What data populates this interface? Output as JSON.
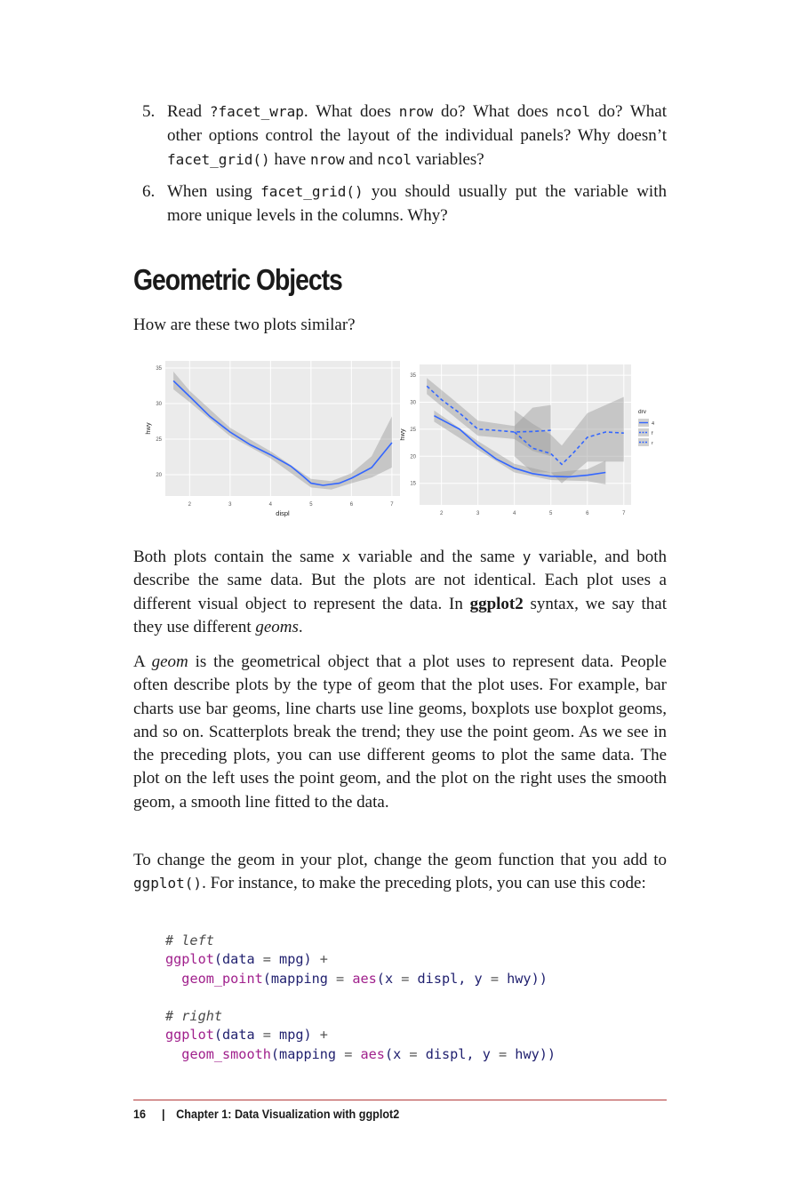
{
  "exercises": [
    {
      "num": "5.",
      "parts": [
        {
          "t": "Read ",
          "c": false
        },
        {
          "t": "?facet_wrap",
          "c": true
        },
        {
          "t": ". What does ",
          "c": false
        },
        {
          "t": "nrow",
          "c": true
        },
        {
          "t": " do? What does ",
          "c": false
        },
        {
          "t": "ncol",
          "c": true
        },
        {
          "t": " do? What other options control the layout of the individual panels? Why doesn’t ",
          "c": false
        },
        {
          "t": "facet_grid()",
          "c": true
        },
        {
          "t": " have ",
          "c": false
        },
        {
          "t": "nrow",
          "c": true
        },
        {
          "t": " and ",
          "c": false
        },
        {
          "t": "ncol",
          "c": true
        },
        {
          "t": " variables?",
          "c": false
        }
      ]
    },
    {
      "num": "6.",
      "parts": [
        {
          "t": "When using ",
          "c": false
        },
        {
          "t": "facet_grid()",
          "c": true
        },
        {
          "t": " you should usually put the variable with more unique levels in the columns. Why?",
          "c": false
        }
      ]
    }
  ],
  "section_title": "Geometric Objects",
  "intro": "How are these two plots similar?",
  "chart_data": [
    {
      "type": "line",
      "xlabel": "displ",
      "ylabel": "hwy",
      "xticks": [
        "2",
        "3",
        "4",
        "5",
        "6",
        "7"
      ],
      "yticks": [
        "20",
        "25",
        "30",
        "35"
      ],
      "xlim": [
        1.4,
        7.2
      ],
      "ylim": [
        17,
        36
      ],
      "series": [
        {
          "values": [
            [
              1.6,
              33.2
            ],
            [
              2.0,
              31.0
            ],
            [
              2.5,
              28.2
            ],
            [
              3.0,
              26.0
            ],
            [
              3.5,
              24.2
            ],
            [
              4.0,
              22.8
            ],
            [
              4.5,
              21.2
            ],
            [
              4.8,
              19.8
            ],
            [
              5.0,
              18.8
            ],
            [
              5.3,
              18.5
            ],
            [
              5.7,
              18.8
            ],
            [
              6.0,
              19.5
            ],
            [
              6.5,
              21.0
            ],
            [
              7.0,
              24.5
            ]
          ]
        }
      ],
      "band": {
        "upper": [
          [
            1.6,
            34.5
          ],
          [
            2.0,
            31.8
          ],
          [
            3.0,
            26.6
          ],
          [
            4.0,
            23.3
          ],
          [
            5.0,
            19.4
          ],
          [
            5.5,
            19.1
          ],
          [
            6.0,
            20.2
          ],
          [
            6.5,
            22.6
          ],
          [
            7.0,
            28.2
          ]
        ],
        "lower": [
          [
            7.0,
            21.0
          ],
          [
            6.5,
            19.6
          ],
          [
            6.0,
            18.8
          ],
          [
            5.5,
            17.9
          ],
          [
            5.0,
            18.2
          ],
          [
            4.0,
            22.3
          ],
          [
            3.0,
            25.4
          ],
          [
            2.0,
            30.2
          ],
          [
            1.6,
            32.0
          ]
        ]
      }
    },
    {
      "type": "line",
      "xlabel": "",
      "ylabel": "hwy",
      "xticks": [
        "2",
        "3",
        "4",
        "5",
        "6",
        "7"
      ],
      "yticks": [
        "15",
        "20",
        "25",
        "30",
        "35"
      ],
      "xlim": [
        1.4,
        7.2
      ],
      "ylim": [
        11,
        37
      ],
      "legend": {
        "title": "drv",
        "position": "right",
        "entries": [
          "4",
          "f",
          "r"
        ]
      },
      "series": [
        {
          "name": "4",
          "dash": false,
          "values": [
            [
              1.8,
              27.5
            ],
            [
              2.5,
              25.0
            ],
            [
              3.0,
              22.0
            ],
            [
              3.5,
              19.5
            ],
            [
              4.0,
              17.8
            ],
            [
              4.5,
              16.8
            ],
            [
              5.0,
              16.3
            ],
            [
              5.5,
              16.2
            ],
            [
              6.0,
              16.5
            ],
            [
              6.5,
              17.0
            ]
          ]
        },
        {
          "name": "f",
          "dash": true,
          "values": [
            [
              1.6,
              33.0
            ],
            [
              2.0,
              30.5
            ],
            [
              2.5,
              28.0
            ],
            [
              3.0,
              25.0
            ],
            [
              3.5,
              24.8
            ],
            [
              4.0,
              24.5
            ],
            [
              4.5,
              24.6
            ],
            [
              5.0,
              24.8
            ]
          ]
        },
        {
          "name": "r",
          "dash": true,
          "values": [
            [
              4.0,
              24.5
            ],
            [
              4.5,
              21.5
            ],
            [
              5.0,
              20.5
            ],
            [
              5.3,
              18.5
            ],
            [
              5.6,
              20.5
            ],
            [
              6.0,
              23.5
            ],
            [
              6.5,
              24.5
            ],
            [
              7.0,
              24.3
            ]
          ]
        }
      ],
      "bands": [
        {
          "upper": [
            [
              1.8,
              28.5
            ],
            [
              3.0,
              22.8
            ],
            [
              4.0,
              18.6
            ],
            [
              5.0,
              17.0
            ],
            [
              6.0,
              17.6
            ],
            [
              6.5,
              19.2
            ]
          ],
          "lower": [
            [
              6.5,
              14.8
            ],
            [
              6.0,
              15.4
            ],
            [
              5.0,
              15.6
            ],
            [
              4.0,
              17.0
            ],
            [
              3.0,
              21.2
            ],
            [
              1.8,
              26.4
            ]
          ]
        },
        {
          "upper": [
            [
              1.6,
              34.5
            ],
            [
              2.5,
              29.5
            ],
            [
              3.0,
              26.6
            ],
            [
              4.0,
              25.6
            ],
            [
              4.5,
              29.0
            ],
            [
              5.0,
              29.5
            ]
          ],
          "lower": [
            [
              5.0,
              20.0
            ],
            [
              4.5,
              21.0
            ],
            [
              4.0,
              23.2
            ],
            [
              3.0,
              23.8
            ],
            [
              2.5,
              26.5
            ],
            [
              1.6,
              31.5
            ]
          ]
        },
        {
          "upper": [
            [
              4.0,
              28.5
            ],
            [
              4.5,
              26.0
            ],
            [
              5.0,
              24.0
            ],
            [
              5.3,
              22.0
            ],
            [
              6.0,
              28.0
            ],
            [
              7.0,
              31.0
            ]
          ],
          "lower": [
            [
              7.0,
              19.0
            ],
            [
              6.0,
              19.0
            ],
            [
              5.3,
              15.0
            ],
            [
              5.0,
              17.0
            ],
            [
              4.5,
              17.0
            ],
            [
              4.0,
              20.0
            ]
          ]
        }
      ]
    }
  ],
  "p1": [
    {
      "t": "Both plots contain the same ",
      "s": ""
    },
    {
      "t": "x",
      "s": "code"
    },
    {
      "t": " variable and the same ",
      "s": ""
    },
    {
      "t": "y",
      "s": "code"
    },
    {
      "t": " variable, and both describe the same data. But the plots are not identical. Each plot uses a different visual object to represent the data. In ",
      "s": ""
    },
    {
      "t": "ggplot2",
      "s": "bold"
    },
    {
      "t": " syntax, we say that they use different ",
      "s": ""
    },
    {
      "t": "geoms",
      "s": "ital"
    },
    {
      "t": ".",
      "s": ""
    }
  ],
  "p2": [
    {
      "t": "A ",
      "s": ""
    },
    {
      "t": "geom",
      "s": "ital"
    },
    {
      "t": " is the geometrical object that a plot uses to represent data. People often describe plots by the type of geom that the plot uses. For example, bar charts use bar geoms, line charts use line geoms, boxplots use boxplot geoms, and so on. Scatterplots break the trend; they use the point geom. As we see in the preceding plots, you can use different geoms to plot the same data. The plot on the left uses the point geom, and the plot on the right uses the smooth geom, a smooth line fitted to the data.",
      "s": ""
    }
  ],
  "p3": [
    {
      "t": "To change the geom in your plot, change the geom function that you add to ",
      "s": ""
    },
    {
      "t": "ggplot()",
      "s": "code"
    },
    {
      "t": ". For instance, to make the preceding plots, you can use this code:",
      "s": ""
    }
  ],
  "code_lines": [
    [
      {
        "t": "# left",
        "k": "cmt"
      }
    ],
    [
      {
        "t": "ggplot",
        "k": "fn"
      },
      {
        "t": "(",
        "k": "arg"
      },
      {
        "t": "data",
        "k": "arg"
      },
      {
        "t": " = ",
        "k": "op"
      },
      {
        "t": "mpg",
        "k": "arg"
      },
      {
        "t": ") ",
        "k": "arg"
      },
      {
        "t": "+",
        "k": "op"
      }
    ],
    [
      {
        "t": "  ",
        "k": "op"
      },
      {
        "t": "geom_point",
        "k": "fn"
      },
      {
        "t": "(",
        "k": "arg"
      },
      {
        "t": "mapping",
        "k": "arg"
      },
      {
        "t": " = ",
        "k": "op"
      },
      {
        "t": "aes",
        "k": "fn"
      },
      {
        "t": "(",
        "k": "arg"
      },
      {
        "t": "x",
        "k": "arg"
      },
      {
        "t": " = ",
        "k": "op"
      },
      {
        "t": "displ",
        "k": "arg"
      },
      {
        "t": ", ",
        "k": "arg"
      },
      {
        "t": "y",
        "k": "arg"
      },
      {
        "t": " = ",
        "k": "op"
      },
      {
        "t": "hwy",
        "k": "arg"
      },
      {
        "t": "))",
        "k": "arg"
      }
    ],
    [
      {
        "t": " ",
        "k": "op"
      }
    ],
    [
      {
        "t": "# right",
        "k": "cmt"
      }
    ],
    [
      {
        "t": "ggplot",
        "k": "fn"
      },
      {
        "t": "(",
        "k": "arg"
      },
      {
        "t": "data",
        "k": "arg"
      },
      {
        "t": " = ",
        "k": "op"
      },
      {
        "t": "mpg",
        "k": "arg"
      },
      {
        "t": ") ",
        "k": "arg"
      },
      {
        "t": "+",
        "k": "op"
      }
    ],
    [
      {
        "t": "  ",
        "k": "op"
      },
      {
        "t": "geom_smooth",
        "k": "fn"
      },
      {
        "t": "(",
        "k": "arg"
      },
      {
        "t": "mapping",
        "k": "arg"
      },
      {
        "t": " = ",
        "k": "op"
      },
      {
        "t": "aes",
        "k": "fn"
      },
      {
        "t": "(",
        "k": "arg"
      },
      {
        "t": "x",
        "k": "arg"
      },
      {
        "t": " = ",
        "k": "op"
      },
      {
        "t": "displ",
        "k": "arg"
      },
      {
        "t": ", ",
        "k": "arg"
      },
      {
        "t": "y",
        "k": "arg"
      },
      {
        "t": " = ",
        "k": "op"
      },
      {
        "t": "hwy",
        "k": "arg"
      },
      {
        "t": "))",
        "k": "arg"
      }
    ]
  ],
  "footer": {
    "page_number": "16",
    "separator": "|",
    "chapter": "Chapter 1: Data Visualization with ggplot2"
  },
  "colors": {
    "line": "#3366ff",
    "panel": "#ebebeb",
    "band": "#999999",
    "rule": "#b33a3a"
  }
}
